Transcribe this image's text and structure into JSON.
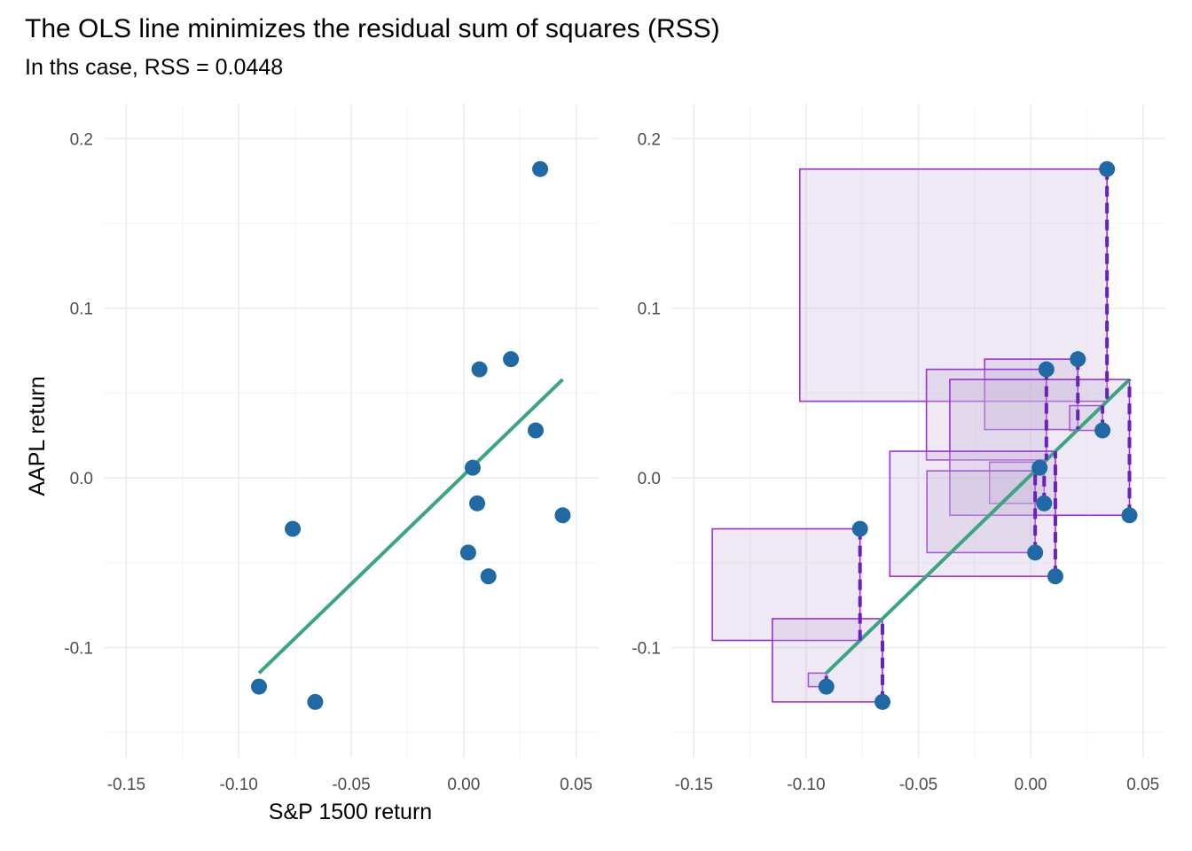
{
  "title": "The OLS line minimizes the residual sum of squares (RSS)",
  "subtitle": "In ths case, RSS = 0.0448",
  "colors": {
    "point": "#1f6aa5",
    "ols_line": "#3aa57e",
    "square_stroke": "#9b30d9",
    "square_fill": "#c8b6dc",
    "residual": "#6a1fbf",
    "grid": "#ebebeb"
  },
  "chart_data": [
    {
      "type": "scatter",
      "panel": "left",
      "xlabel": "S&P 1500 return",
      "ylabel": "AAPL return",
      "xlim": [
        -0.16,
        0.06
      ],
      "ylim": [
        -0.165,
        0.22
      ],
      "x_ticks": [
        "-0.15",
        "-0.10",
        "-0.05",
        "0.00",
        "0.05"
      ],
      "y_ticks": [
        "0.2",
        "0.1",
        "0.0",
        "-0.1"
      ],
      "grid": true,
      "points": [
        {
          "x": 0.034,
          "y": 0.182
        },
        {
          "x": 0.021,
          "y": 0.07
        },
        {
          "x": 0.007,
          "y": 0.064
        },
        {
          "x": 0.032,
          "y": 0.028
        },
        {
          "x": 0.004,
          "y": 0.006
        },
        {
          "x": 0.006,
          "y": -0.015
        },
        {
          "x": 0.044,
          "y": -0.022
        },
        {
          "x": 0.002,
          "y": -0.044
        },
        {
          "x": 0.011,
          "y": -0.058
        },
        {
          "x": -0.076,
          "y": -0.03
        },
        {
          "x": -0.091,
          "y": -0.123
        },
        {
          "x": -0.066,
          "y": -0.132
        }
      ],
      "ols_line": {
        "x": [
          -0.091,
          0.044
        ],
        "y": [
          -0.115,
          0.058
        ]
      }
    },
    {
      "type": "scatter",
      "panel": "right",
      "xlabel": "",
      "ylabel": "",
      "xlim": [
        -0.16,
        0.06
      ],
      "ylim": [
        -0.165,
        0.22
      ],
      "x_ticks": [
        "-0.15",
        "-0.10",
        "-0.05",
        "0.00",
        "0.05"
      ],
      "y_ticks": [
        "0.2",
        "0.1",
        "0.0",
        "-0.1"
      ],
      "grid": true,
      "show_residuals": true,
      "show_squared_residuals": true
    }
  ]
}
